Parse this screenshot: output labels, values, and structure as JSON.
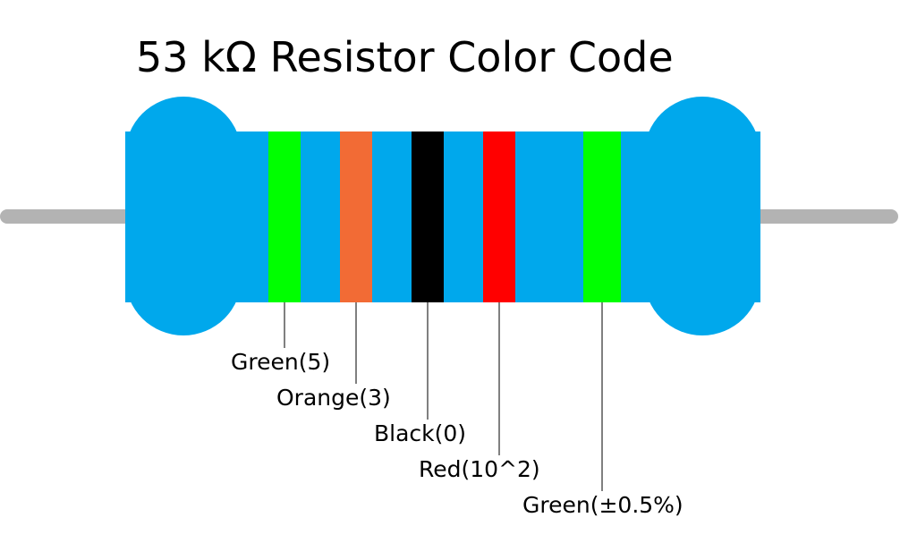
{
  "title": "53 kΩ Resistor Color Code",
  "bands": [
    {
      "label": "Green(5)",
      "color": "#00ff00"
    },
    {
      "label": "Orange(3)",
      "color": "#f26b35"
    },
    {
      "label": "Black(0)",
      "color": "#000000"
    },
    {
      "label": "Red(10^2)",
      "color": "#ff0000"
    },
    {
      "label": "Green(±0.5%)",
      "color": "#00ff00"
    }
  ]
}
